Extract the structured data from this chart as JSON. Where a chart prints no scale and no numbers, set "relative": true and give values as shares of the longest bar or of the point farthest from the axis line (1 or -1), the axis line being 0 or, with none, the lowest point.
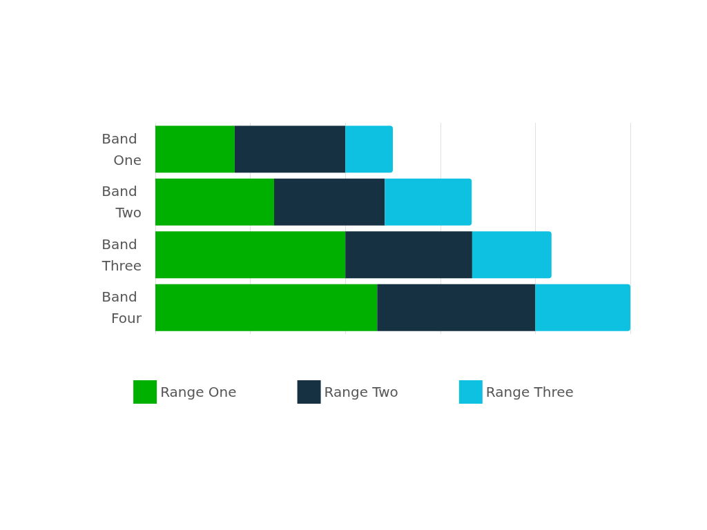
{
  "chart_data": {
    "type": "bar",
    "orientation": "horizontal",
    "stacked": true,
    "relative": true,
    "grid": "x",
    "legend": "bottom",
    "categories": [
      "Band One",
      "Band Two",
      "Band Three",
      "Band Four"
    ],
    "series": [
      {
        "name": "Range One",
        "color": "#00b000",
        "values": [
          0.167,
          0.25,
          0.4,
          0.467
        ]
      },
      {
        "name": "Range Two",
        "color": "#163142",
        "values": [
          0.233,
          0.233,
          0.267,
          0.333
        ]
      },
      {
        "name": "Range Three",
        "color": "#0fc1e1",
        "values": [
          0.1,
          0.183,
          0.167,
          0.2
        ]
      }
    ]
  }
}
